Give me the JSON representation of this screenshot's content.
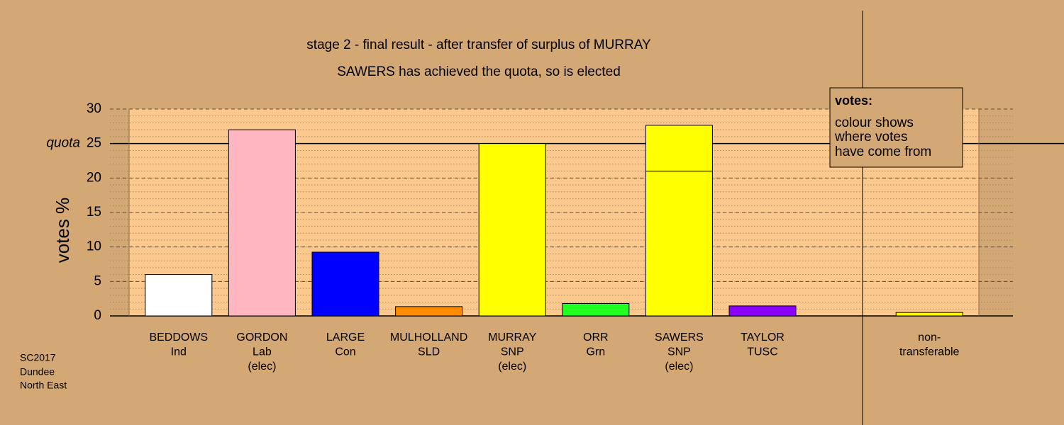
{
  "chart_data": {
    "type": "bar",
    "title": "stage 2 - final result - after transfer of surplus of MURRAY",
    "subtitle": "SAWERS has achieved the quota, so is elected",
    "ylabel": "votes %",
    "categories": [
      [
        "BEDDOWS",
        "Ind"
      ],
      [
        "GORDON",
        "Lab",
        "(elec)"
      ],
      [
        "LARGE",
        "Con"
      ],
      [
        "MULHOLLAND",
        "SLD"
      ],
      [
        "MURRAY",
        "SNP",
        "(elec)"
      ],
      [
        "ORR",
        "Grn"
      ],
      [
        "SAWERS",
        "SNP",
        "(elec)"
      ],
      [
        "TAYLOR",
        "TUSC"
      ],
      null,
      [
        "non-",
        "transferable"
      ]
    ],
    "series": [
      {
        "colors": [
          "#ffffff",
          "#ffb6c1",
          "#0000ff",
          "#ff8c00",
          "#ffff00",
          "#22ff22",
          "#ffff00",
          "#8b00ff",
          null,
          "#ffff00"
        ],
        "values": [
          6.0,
          27.0,
          9.25,
          1.35,
          25.0,
          1.8,
          21.0,
          1.45,
          null,
          0.5
        ]
      },
      {
        "color": "#ffff00",
        "values": [
          null,
          null,
          null,
          null,
          null,
          null,
          6.65,
          null,
          null,
          null
        ]
      }
    ],
    "stacked": true,
    "ylim": [
      0,
      30
    ],
    "yticks": [
      0,
      5,
      10,
      15,
      20,
      25,
      30
    ],
    "grid": {
      "major": true,
      "minor_step": 1
    },
    "quota": 25,
    "quota_label": "quota",
    "legend": {
      "title": "votes:",
      "lines": [
        "colour shows",
        "where votes",
        "have come from"
      ],
      "corner": "upper right"
    },
    "footnote": [
      "SC2017",
      "Dundee",
      "North East"
    ]
  }
}
